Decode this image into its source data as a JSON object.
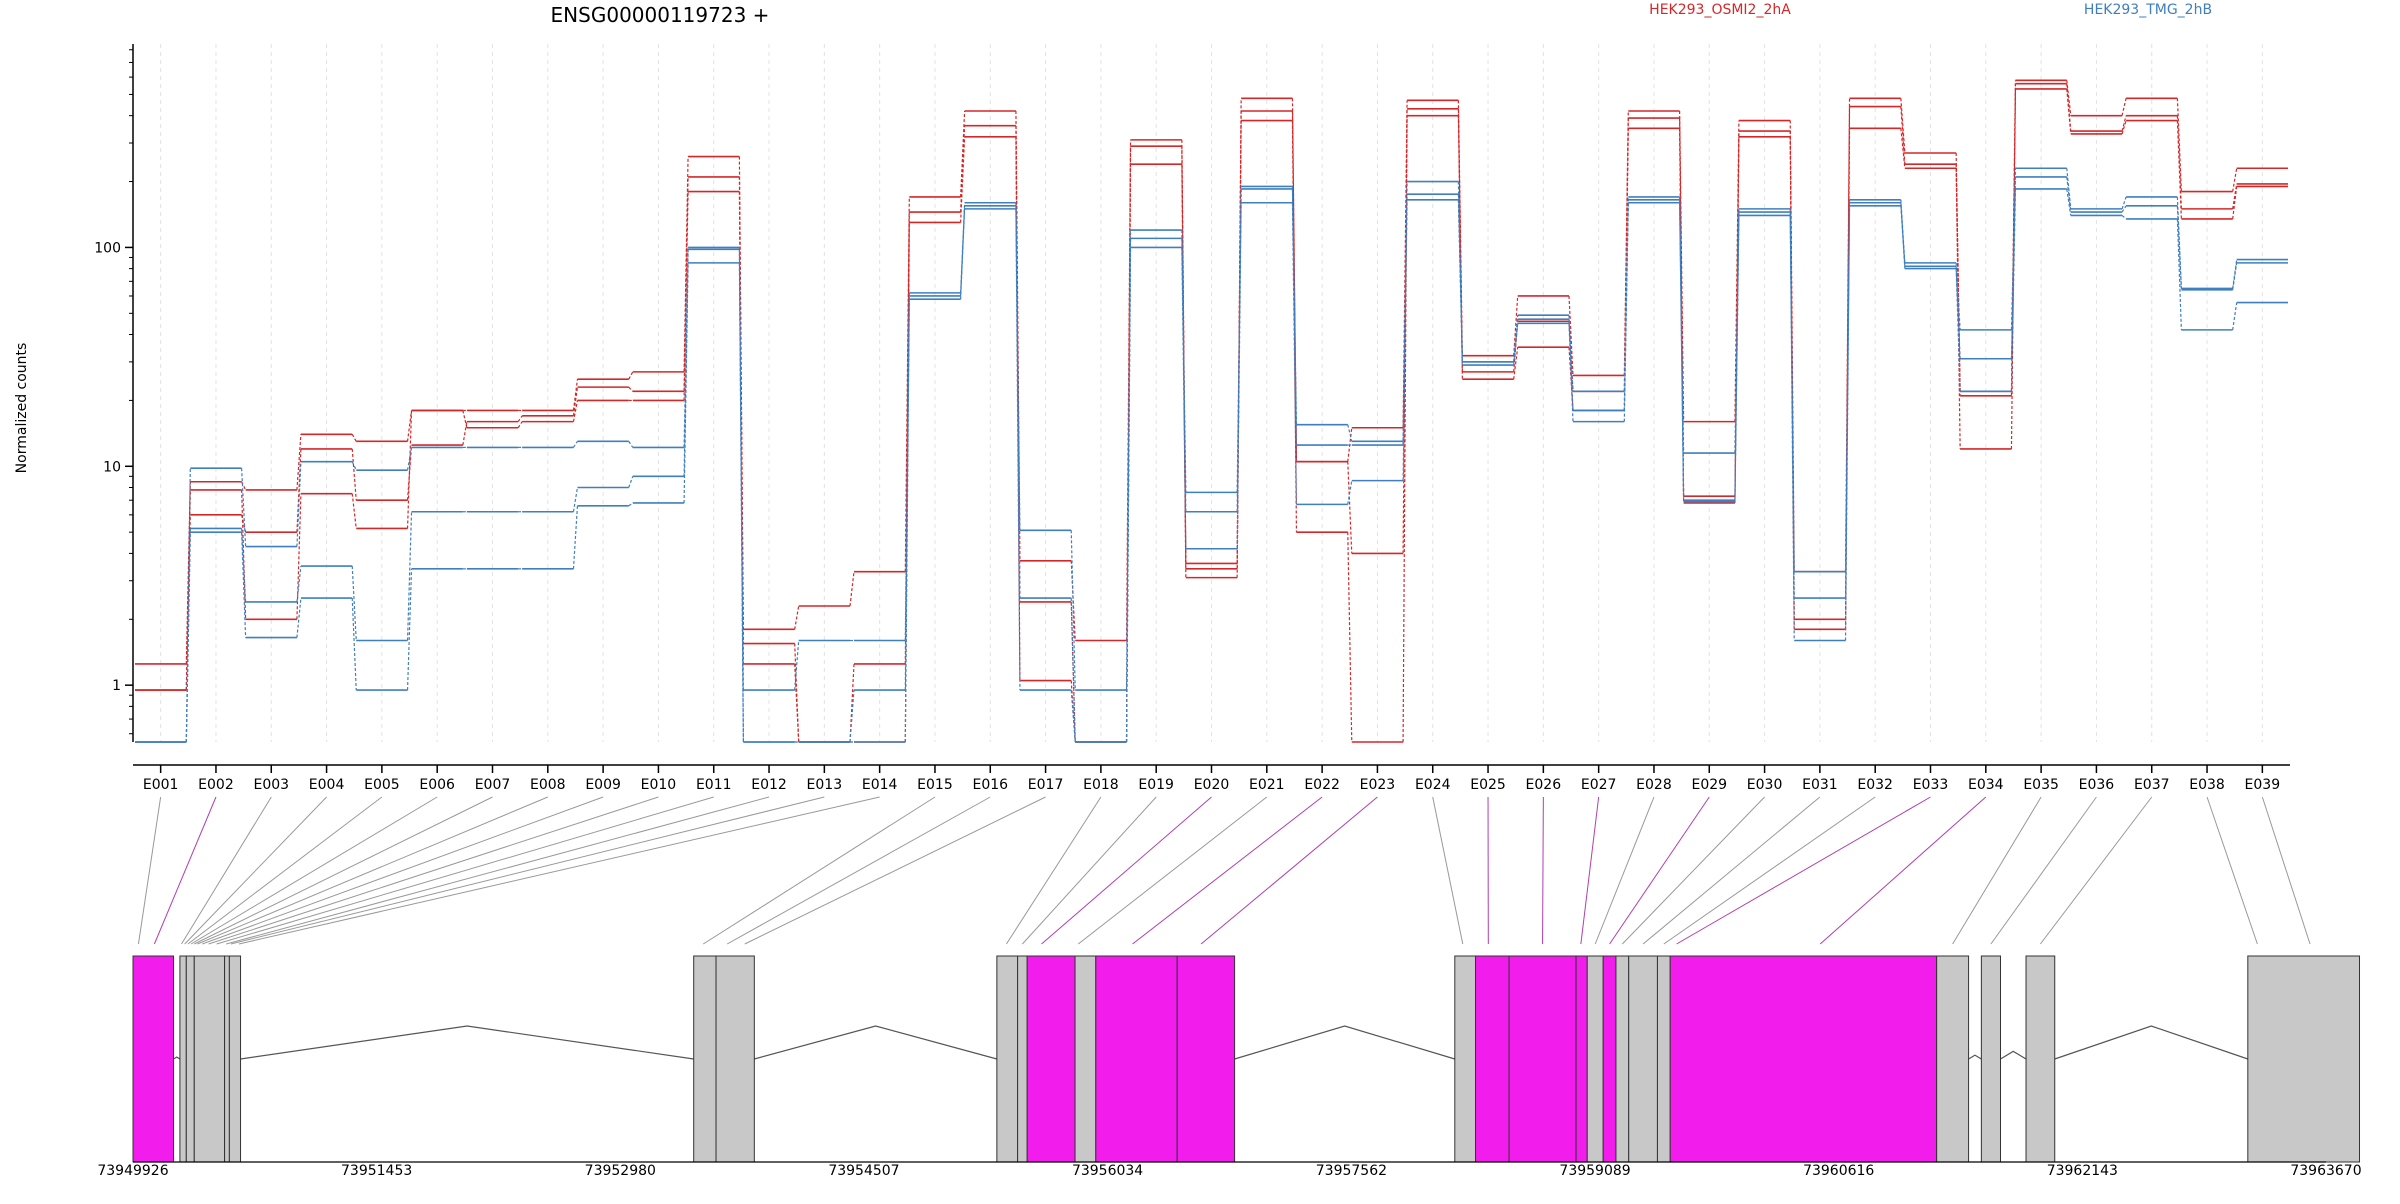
{
  "chart_data": {
    "type": "line",
    "title": "ENSG00000119723 +",
    "ylabel": "Normalized counts",
    "xlabel": "",
    "y_scale": "log",
    "ylim": [
      0.55,
      850
    ],
    "y_ticks": [
      1,
      10,
      100
    ],
    "y_tick_labels": [
      "1",
      "10",
      "100"
    ],
    "grid": "vertical dashed lines per exon",
    "legend_placement": "top",
    "legend": [
      {
        "name": "HEK293_OSMI2_2hA",
        "color": "#d62728"
      },
      {
        "name": "HEK293_TMG_2hB",
        "color": "#3f7fbf"
      }
    ],
    "categories": [
      "E001",
      "E002",
      "E003",
      "E004",
      "E005",
      "E006",
      "E007",
      "E008",
      "E009",
      "E010",
      "E011",
      "E012",
      "E013",
      "E014",
      "E015",
      "E016",
      "E017",
      "E018",
      "E019",
      "E020",
      "E021",
      "E022",
      "E023",
      "E024",
      "E025",
      "E026",
      "E027",
      "E028",
      "E029",
      "E030",
      "E031",
      "E032",
      "E033",
      "E034",
      "E035",
      "E036",
      "E037",
      "E038",
      "E039"
    ],
    "series": [
      {
        "group": "HEK293_OSMI2_2hA",
        "color": "#d62728",
        "values": [
          1.25,
          8.5,
          7.8,
          14,
          13,
          18,
          18,
          18,
          25,
          27,
          260,
          1.8,
          2.3,
          3.3,
          170,
          420,
          3.7,
          1.6,
          310,
          3.6,
          480,
          10.5,
          15,
          470,
          32,
          60,
          26,
          420,
          16,
          380,
          3.3,
          480,
          270,
          22,
          580,
          400,
          480,
          180,
          230
        ]
      },
      {
        "group": "HEK293_OSMI2_2hA",
        "color": "#d62728",
        "values": [
          0.95,
          6.0,
          5.0,
          12,
          7.0,
          12.5,
          16,
          17,
          23,
          22,
          210,
          1.55,
          0.55,
          1.25,
          145,
          360,
          2.4,
          0.55,
          290,
          3.4,
          420,
          10.5,
          4.0,
          430,
          27,
          46,
          22,
          390,
          7.3,
          340,
          2.0,
          440,
          240,
          21,
          560,
          340,
          400,
          150,
          195
        ]
      },
      {
        "group": "HEK293_OSMI2_2hA",
        "color": "#d62728",
        "values": [
          0.95,
          7.8,
          2.0,
          7.5,
          5.2,
          18,
          15,
          16,
          20,
          20,
          180,
          1.25,
          0.55,
          0.55,
          130,
          320,
          1.05,
          0.55,
          240,
          3.1,
          380,
          5.0,
          0.55,
          400,
          25,
          35,
          18,
          350,
          6.8,
          320,
          1.8,
          350,
          230,
          12,
          530,
          330,
          380,
          135,
          190
        ]
      },
      {
        "group": "HEK293_TMG_2hB",
        "color": "#3f7fbf",
        "values": [
          0.55,
          9.8,
          4.3,
          10.5,
          9.6,
          12.2,
          12.2,
          12.2,
          13,
          12.2,
          100,
          0.95,
          1.6,
          1.6,
          62,
          160,
          5.1,
          0.95,
          120,
          7.6,
          190,
          15.5,
          13,
          200,
          30,
          49,
          22,
          170,
          11.5,
          150,
          3.3,
          165,
          85,
          42,
          230,
          150,
          170,
          65,
          88
        ]
      },
      {
        "group": "HEK293_TMG_2hB",
        "color": "#3f7fbf",
        "values": [
          0.55,
          5.2,
          2.4,
          3.5,
          1.6,
          6.2,
          6.2,
          6.2,
          8,
          9,
          98,
          0.55,
          0.55,
          0.95,
          60,
          155,
          2.5,
          0.55,
          110,
          6.2,
          185,
          12.5,
          12.5,
          175,
          30,
          47,
          18,
          165,
          7.0,
          145,
          2.5,
          160,
          82,
          31,
          210,
          145,
          155,
          64,
          85
        ]
      },
      {
        "group": "HEK293_TMG_2hB",
        "color": "#3f7fbf",
        "values": [
          0.55,
          5.0,
          1.65,
          2.5,
          0.95,
          3.4,
          3.4,
          3.4,
          6.6,
          6.8,
          85,
          0.55,
          0.55,
          0.55,
          58,
          150,
          0.95,
          0.55,
          100,
          4.2,
          160,
          6.7,
          8.6,
          165,
          29,
          45,
          16,
          160,
          6.9,
          140,
          1.6,
          155,
          80,
          22,
          185,
          140,
          135,
          42,
          56
        ]
      }
    ],
    "genomic_axis": {
      "range": [
        73949926,
        73963670
      ],
      "tick_labels": [
        "73949926",
        "73951453",
        "73952980",
        "73954507",
        "73956034",
        "73957562",
        "73959089",
        "73960616",
        "73962143",
        "73963670"
      ],
      "tick_positions": [
        73949926,
        73951453,
        73952980,
        73954507,
        73956034,
        73957562,
        73959089,
        73960616,
        73962143,
        73963670
      ]
    },
    "exon_model": {
      "highlight_color": "#f21ded",
      "default_color": "#c8c8c8",
      "blocks": [
        {
          "start": 73949926,
          "end": 73950180,
          "highlighted": true
        },
        {
          "start": 73950220,
          "end": 73950260,
          "highlighted": false
        },
        {
          "start": 73950260,
          "end": 73950310,
          "highlighted": false
        },
        {
          "start": 73950310,
          "end": 73950500,
          "highlighted": false
        },
        {
          "start": 73950500,
          "end": 73950530,
          "highlighted": false
        },
        {
          "start": 73950530,
          "end": 73950600,
          "highlighted": false
        },
        {
          "start": 73953440,
          "end": 73953580,
          "highlighted": false
        },
        {
          "start": 73953580,
          "end": 73953820,
          "highlighted": false
        },
        {
          "start": 73955340,
          "end": 73955470,
          "highlighted": false
        },
        {
          "start": 73955470,
          "end": 73955530,
          "highlighted": false
        },
        {
          "start": 73955530,
          "end": 73955830,
          "highlighted": true
        },
        {
          "start": 73955830,
          "end": 73955960,
          "highlighted": false
        },
        {
          "start": 73955960,
          "end": 73956470,
          "highlighted": true
        },
        {
          "start": 73956470,
          "end": 73956830,
          "highlighted": true
        },
        {
          "start": 73958210,
          "end": 73958340,
          "highlighted": false
        },
        {
          "start": 73958340,
          "end": 73958550,
          "highlighted": true
        },
        {
          "start": 73958550,
          "end": 73958970,
          "highlighted": true
        },
        {
          "start": 73958970,
          "end": 73959040,
          "highlighted": true
        },
        {
          "start": 73959040,
          "end": 73959140,
          "highlighted": false
        },
        {
          "start": 73959140,
          "end": 73959220,
          "highlighted": true
        },
        {
          "start": 73959220,
          "end": 73959300,
          "highlighted": false
        },
        {
          "start": 73959300,
          "end": 73959480,
          "highlighted": false
        },
        {
          "start": 73959480,
          "end": 73959560,
          "highlighted": false
        },
        {
          "start": 73959560,
          "end": 73961230,
          "highlighted": true
        },
        {
          "start": 73961230,
          "end": 73961430,
          "highlighted": false
        },
        {
          "start": 73961510,
          "end": 73961630,
          "highlighted": false
        },
        {
          "start": 73961790,
          "end": 73961970,
          "highlighted": false
        },
        {
          "start": 73963180,
          "end": 73963880,
          "highlighted": false
        }
      ]
    },
    "exon_links": [
      {
        "exon": "E001",
        "coord": 73949960,
        "highlighted": false
      },
      {
        "exon": "E002",
        "coord": 73950060,
        "highlighted": true
      },
      {
        "exon": "E003",
        "coord": 73950230,
        "highlighted": false
      },
      {
        "exon": "E004",
        "coord": 73950250,
        "highlighted": false
      },
      {
        "exon": "E005",
        "coord": 73950270,
        "highlighted": false
      },
      {
        "exon": "E006",
        "coord": 73950290,
        "highlighted": false
      },
      {
        "exon": "E007",
        "coord": 73950310,
        "highlighted": false
      },
      {
        "exon": "E008",
        "coord": 73950330,
        "highlighted": false
      },
      {
        "exon": "E009",
        "coord": 73950360,
        "highlighted": false
      },
      {
        "exon": "E010",
        "coord": 73950400,
        "highlighted": false
      },
      {
        "exon": "E011",
        "coord": 73950450,
        "highlighted": false
      },
      {
        "exon": "E012",
        "coord": 73950510,
        "highlighted": false
      },
      {
        "exon": "E013",
        "coord": 73950540,
        "highlighted": false
      },
      {
        "exon": "E014",
        "coord": 73950590,
        "highlighted": false
      },
      {
        "exon": "E015",
        "coord": 73953500,
        "highlighted": false
      },
      {
        "exon": "E016",
        "coord": 73953650,
        "highlighted": false
      },
      {
        "exon": "E017",
        "coord": 73953760,
        "highlighted": false
      },
      {
        "exon": "E018",
        "coord": 73955400,
        "highlighted": false
      },
      {
        "exon": "E019",
        "coord": 73955500,
        "highlighted": false
      },
      {
        "exon": "E020",
        "coord": 73955620,
        "highlighted": true
      },
      {
        "exon": "E021",
        "coord": 73955850,
        "highlighted": false
      },
      {
        "exon": "E022",
        "coord": 73956190,
        "highlighted": true
      },
      {
        "exon": "E023",
        "coord": 73956620,
        "highlighted": true
      },
      {
        "exon": "E024",
        "coord": 73958260,
        "highlighted": false
      },
      {
        "exon": "E025",
        "coord": 73958420,
        "highlighted": true
      },
      {
        "exon": "E026",
        "coord": 73958760,
        "highlighted": true
      },
      {
        "exon": "E027",
        "coord": 73959000,
        "highlighted": true
      },
      {
        "exon": "E028",
        "coord": 73959090,
        "highlighted": false
      },
      {
        "exon": "E029",
        "coord": 73959180,
        "highlighted": true
      },
      {
        "exon": "E030",
        "coord": 73959260,
        "highlighted": false
      },
      {
        "exon": "E031",
        "coord": 73959390,
        "highlighted": false
      },
      {
        "exon": "E032",
        "coord": 73959520,
        "highlighted": false
      },
      {
        "exon": "E033",
        "coord": 73959600,
        "highlighted": true
      },
      {
        "exon": "E034",
        "coord": 73960500,
        "highlighted": true
      },
      {
        "exon": "E035",
        "coord": 73961330,
        "highlighted": false
      },
      {
        "exon": "E036",
        "coord": 73961570,
        "highlighted": false
      },
      {
        "exon": "E037",
        "coord": 73961880,
        "highlighted": false
      },
      {
        "exon": "E038",
        "coord": 73963240,
        "highlighted": false
      },
      {
        "exon": "E039",
        "coord": 73963570,
        "highlighted": false
      }
    ]
  }
}
